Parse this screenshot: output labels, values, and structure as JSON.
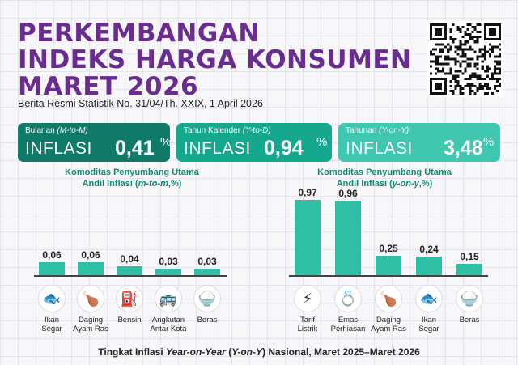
{
  "header": {
    "title_line1": "PERKEMBANGAN",
    "title_line2": "INDEKS HARGA KONSUMEN",
    "title_line3": "MARET 2026",
    "subtitle": "Berita Resmi Statistik No. 31/04/Th. XXIX, 1 April 2026"
  },
  "cards": [
    {
      "caption_prefix": "Bulanan ",
      "caption_italic": "(M-to-M)",
      "label": "INFLASI",
      "value": "0,41",
      "unit": "%",
      "color": "#0f7a68"
    },
    {
      "caption_prefix": "Tahun Kalender ",
      "caption_italic": "(Y-to-D)",
      "label": "INFLASI",
      "value": "0,94",
      "unit": "%",
      "color": "#16a88e"
    },
    {
      "caption_prefix": "Tahunan ",
      "caption_italic": "(Y-on-Y)",
      "label": "INFLASI",
      "value": "3,48",
      "unit": "%",
      "color": "#3fc7b0"
    }
  ],
  "chart_data": [
    {
      "type": "bar",
      "title_line1": "Komoditas Penyumbang Utama",
      "title_line2_prefix": "Andil Inflasi (",
      "title_line2_italic": "m-to-m",
      "title_line2_suffix": ",%)",
      "categories": [
        "Ikan Segar",
        "Daging Ayam Ras",
        "Bensin",
        "Angkutan Antar Kota",
        "Beras"
      ],
      "category_lines": [
        [
          "Ikan",
          "Segar"
        ],
        [
          "Daging",
          "Ayam Ras"
        ],
        [
          "Bensin"
        ],
        [
          "Angkutan",
          "Antar Kota"
        ],
        [
          "Beras"
        ]
      ],
      "values": [
        0.06,
        0.06,
        0.04,
        0.03,
        0.03
      ],
      "value_labels": [
        "0,06",
        "0,06",
        "0,04",
        "0,03",
        "0,03"
      ],
      "icons": [
        "fish-icon",
        "chicken-meat-icon",
        "fuel-pump-icon",
        "bus-icon",
        "rice-sack-icon"
      ],
      "bar_color": "#2ebfa5"
    },
    {
      "type": "bar",
      "title_line1": "Komoditas Penyumbang Utama",
      "title_line2_prefix": "Andil Inflasi (",
      "title_line2_italic": "y-on-y",
      "title_line2_suffix": ",%)",
      "categories": [
        "Tarif Listrik",
        "Emas Perhiasan",
        "Daging Ayam Ras",
        "Ikan Segar",
        "Beras"
      ],
      "category_lines": [
        [
          "Tarif",
          "Listrik"
        ],
        [
          "Emas",
          "Perhiasan"
        ],
        [
          "Daging",
          "Ayam Ras"
        ],
        [
          "Ikan",
          "Segar"
        ],
        [
          "Beras"
        ]
      ],
      "values": [
        0.97,
        0.96,
        0.25,
        0.24,
        0.15
      ],
      "value_labels": [
        "0,97",
        "0,96",
        "0,25",
        "0,24",
        "0,15"
      ],
      "icons": [
        "electricity-meter-icon",
        "gold-jewelry-icon",
        "chicken-meat-icon",
        "fish-icon",
        "rice-sack-icon"
      ],
      "bar_color": "#2ebfa5"
    }
  ],
  "footer": {
    "prefix": "Tingkat Inflasi ",
    "italic1": "Year-on-Year",
    "middle": " (",
    "italic2": "Y-on-Y",
    "suffix": ") Nasional, Maret 2025–Maret 2026"
  }
}
